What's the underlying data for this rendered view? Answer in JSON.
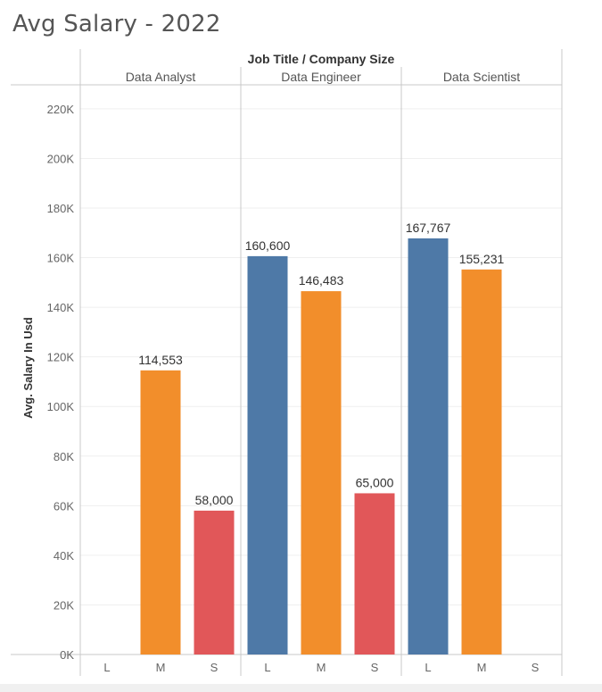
{
  "page": {
    "title": "Avg Salary - 2022"
  },
  "chart_data": {
    "type": "bar",
    "header": "Job Title  /  Company Size",
    "ylabel": "Avg. Salary In Usd",
    "ylim": [
      0,
      225000
    ],
    "yticks": [
      {
        "value": 0,
        "label": "0K"
      },
      {
        "value": 20000,
        "label": "20K"
      },
      {
        "value": 40000,
        "label": "40K"
      },
      {
        "value": 60000,
        "label": "60K"
      },
      {
        "value": 80000,
        "label": "80K"
      },
      {
        "value": 100000,
        "label": "100K"
      },
      {
        "value": 120000,
        "label": "120K"
      },
      {
        "value": 140000,
        "label": "140K"
      },
      {
        "value": 160000,
        "label": "160K"
      },
      {
        "value": 180000,
        "label": "180K"
      },
      {
        "value": 200000,
        "label": "200K"
      },
      {
        "value": 220000,
        "label": "220K"
      }
    ],
    "company_sizes": [
      "L",
      "M",
      "S"
    ],
    "colors": {
      "L": "#4e79a7",
      "M": "#f28e2b",
      "S": "#e15759"
    },
    "grid": true,
    "groups": [
      {
        "name": "Data Analyst",
        "bars": [
          {
            "size": "L",
            "value": null,
            "label": ""
          },
          {
            "size": "M",
            "value": 114553,
            "label": "114,553"
          },
          {
            "size": "S",
            "value": 58000,
            "label": "58,000"
          }
        ]
      },
      {
        "name": "Data Engineer",
        "bars": [
          {
            "size": "L",
            "value": 160600,
            "label": "160,600"
          },
          {
            "size": "M",
            "value": 146483,
            "label": "146,483"
          },
          {
            "size": "S",
            "value": 65000,
            "label": "65,000"
          }
        ]
      },
      {
        "name": "Data Scientist",
        "bars": [
          {
            "size": "L",
            "value": 167767,
            "label": "167,767"
          },
          {
            "size": "M",
            "value": 155231,
            "label": "155,231"
          },
          {
            "size": "S",
            "value": null,
            "label": ""
          }
        ]
      }
    ]
  }
}
